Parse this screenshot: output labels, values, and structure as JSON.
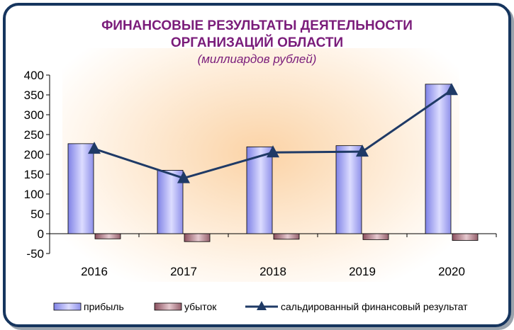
{
  "chart_data": {
    "type": "bar",
    "title_line1": "ФИНАНСОВЫЕ РЕЗУЛЬТАТЫ ДЕЯТЕЛЬНОСТИ",
    "title_line2": "ОРГАНИЗАЦИЙ  ОБЛАСТИ",
    "subtitle": "(миллиардов рублей)",
    "categories": [
      "2016",
      "2017",
      "2018",
      "2019",
      "2020"
    ],
    "ylim": [
      -50,
      400
    ],
    "yticks": [
      -50,
      0,
      50,
      100,
      150,
      200,
      250,
      300,
      350,
      400
    ],
    "grid": false,
    "legend_position": "bottom",
    "series": [
      {
        "name": "прибыль",
        "kind": "bar",
        "values": [
          227,
          160,
          219,
          222,
          377
        ],
        "color": "#9a9cf0"
      },
      {
        "name": "убыток",
        "kind": "bar",
        "values": [
          -13,
          -20,
          -14,
          -15,
          -17
        ],
        "color": "#a46a78"
      },
      {
        "name": "сальдированный финансовый результат",
        "kind": "line",
        "values": [
          214,
          140,
          205,
          207,
          362
        ],
        "color": "#1f3a66"
      }
    ]
  }
}
